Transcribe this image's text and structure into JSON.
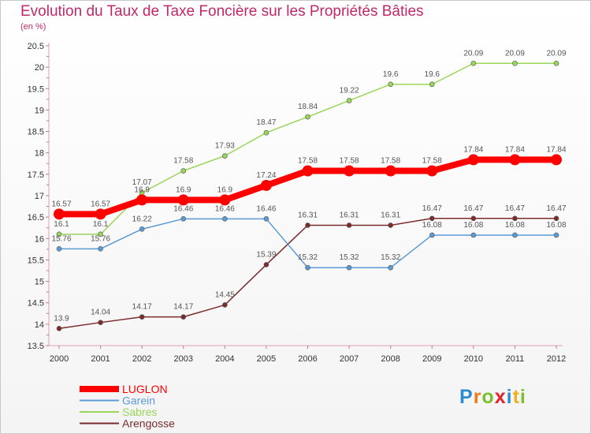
{
  "title": "Evolution du Taux de Taxe Foncière sur les Propriétés Bâties",
  "unit": "(en %)",
  "brand": {
    "letters": [
      "P",
      "r",
      "o",
      "x",
      "i",
      "t",
      "i"
    ],
    "colors": [
      "#2c8ccf",
      "#f07a1a",
      "#7cbf2a",
      "#e0222a",
      "#2c8ccf",
      "#f0b020",
      "#7cbf2a"
    ]
  },
  "chart_data": {
    "type": "line",
    "x": [
      "2000",
      "2001",
      "2002",
      "2003",
      "2004",
      "2005",
      "2006",
      "2007",
      "2008",
      "2009",
      "2010",
      "2011",
      "2012"
    ],
    "ylim": [
      13.5,
      20.5
    ],
    "yticks": [
      "13.5",
      "14",
      "14.5",
      "15",
      "15.5",
      "16",
      "16.5",
      "17",
      "17.5",
      "18",
      "18.5",
      "19",
      "19.5",
      "20",
      "20.5"
    ],
    "grid": false,
    "legend_position": "bottom-left",
    "series": [
      {
        "name": "LUGLON",
        "color": "#ff0000",
        "values": [
          16.57,
          16.57,
          16.9,
          16.9,
          16.9,
          17.24,
          17.58,
          17.58,
          17.58,
          17.58,
          17.84,
          17.84,
          17.84
        ],
        "labels": [
          "16.57",
          "16.57",
          "16.9",
          "16.9",
          "16.9",
          "17.24",
          "17.58",
          "17.58",
          "17.58",
          "17.58",
          "17.84",
          "17.84",
          "17.84"
        ]
      },
      {
        "name": "Garein",
        "color": "#5b9bd5",
        "values": [
          15.76,
          15.76,
          16.22,
          16.46,
          16.46,
          16.46,
          15.32,
          15.32,
          15.32,
          16.08,
          16.08,
          16.08,
          16.08
        ],
        "labels": [
          "15.76",
          "15.76",
          "16.22",
          "16.46",
          "16.46",
          "16.46",
          "15.32",
          "15.32",
          "15.32",
          "16.08",
          "16.08",
          "16.08",
          "16.08"
        ]
      },
      {
        "name": "Sabres",
        "color": "#99d65a",
        "values": [
          16.1,
          16.1,
          17.07,
          17.58,
          17.93,
          18.47,
          18.84,
          19.22,
          19.6,
          19.6,
          20.09,
          20.09,
          20.09
        ],
        "labels": [
          "16.1",
          "16.1",
          "17.07",
          "17.58",
          "17.93",
          "18.47",
          "18.84",
          "19.22",
          "19.6",
          "19.6",
          "20.09",
          "20.09",
          "20.09"
        ]
      },
      {
        "name": "Arengosse",
        "color": "#7b2c2c",
        "values": [
          13.9,
          14.04,
          14.17,
          14.17,
          14.45,
          15.39,
          16.31,
          16.31,
          16.31,
          16.47,
          16.47,
          16.47,
          16.47
        ],
        "labels": [
          "13.9",
          "14.04",
          "14.17",
          "14.17",
          "14.45",
          "15.39",
          "16.31",
          "16.31",
          "16.31",
          "16.47",
          "16.47",
          "16.47",
          "16.47"
        ]
      }
    ]
  }
}
